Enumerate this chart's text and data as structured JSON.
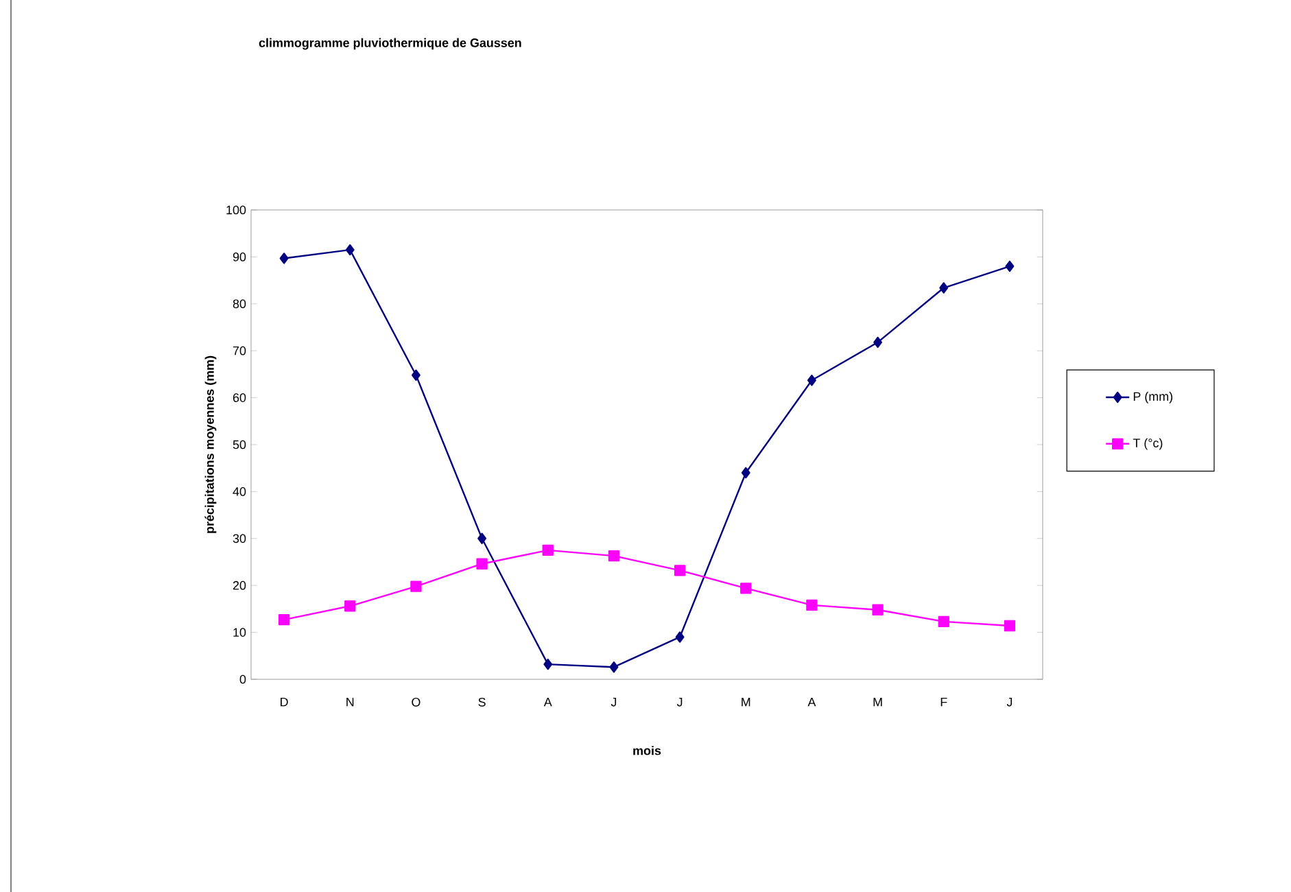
{
  "chart_data": {
    "type": "line",
    "title": "climmogramme pluviothermique de Gaussen",
    "xlabel": "mois",
    "ylabel": "précipitations moyennes (mm)",
    "categories": [
      "D",
      "N",
      "O",
      "S",
      "A",
      "J",
      "J",
      "M",
      "A",
      "M",
      "F",
      "J"
    ],
    "series": [
      {
        "name": "P (mm)",
        "color": "#000080",
        "marker": "diamond",
        "values": [
          89.7,
          91.5,
          64.8,
          30,
          3.2,
          2.6,
          9,
          44,
          63.7,
          71.8,
          83.4,
          88
        ]
      },
      {
        "name": "T (°c)",
        "color": "#ff00ff",
        "marker": "square",
        "values": [
          12.7,
          15.6,
          19.8,
          24.6,
          27.5,
          26.3,
          23.2,
          19.4,
          15.8,
          14.8,
          12.3,
          11.4
        ]
      }
    ],
    "ylim": [
      0,
      100
    ],
    "yticks": [
      0,
      10,
      20,
      30,
      40,
      50,
      60,
      70,
      80,
      90,
      100
    ],
    "grid": false,
    "legend": "right",
    "line_style": "solid"
  }
}
